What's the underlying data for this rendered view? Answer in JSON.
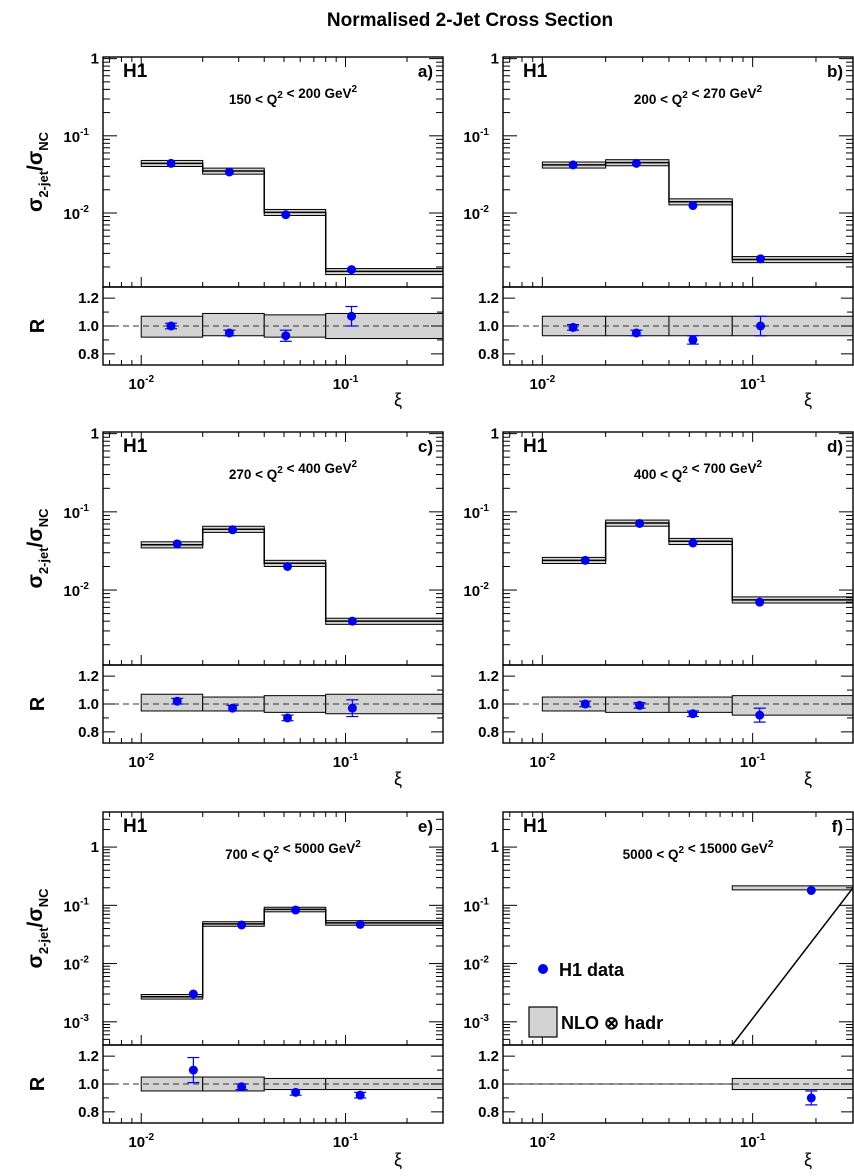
{
  "figure_title": "Normalised 2-Jet Cross Section",
  "experiment_label": "H1",
  "colors": {
    "data": "#0000ee",
    "band": "#d3d3d3",
    "line": "#000000"
  },
  "tick_text": {
    "base": "10",
    "ylog_exps": [
      "-3",
      "-2",
      "-1"
    ],
    "ylog_one": "1",
    "xlog_exps": [
      "-2",
      "-1"
    ],
    "ratio_ticks": [
      "0.8",
      "1.0",
      "1.2"
    ]
  },
  "legend": {
    "data_label": "H1 data",
    "band_label": "NLO ⊗ hadr"
  },
  "chart_data": [
    {
      "type": "scatter",
      "panel": "a)",
      "q2_label": "150 < Q² < 200 GeV²",
      "xlabel": "ξ",
      "ylabel": "σ2-jet/σNC",
      "ratio_ylabel": "R",
      "xscale": "log",
      "xlim": [
        0.0065,
        0.3
      ],
      "yscale": "log",
      "ylim": [
        0.0011,
        1.05
      ],
      "ratio_ylim": [
        0.72,
        1.28
      ],
      "bin_edges": [
        0.01,
        0.02,
        0.04,
        0.08,
        0.3
      ],
      "nlo": [
        0.044,
        0.035,
        0.0102,
        0.00175
      ],
      "nlo_band_rel": [
        0.09,
        0.09,
        0.09,
        0.09
      ],
      "data_x": [
        0.014,
        0.027,
        0.051,
        0.107
      ],
      "data_y": [
        0.044,
        0.034,
        0.0095,
        0.00185
      ],
      "ratio_band_low": [
        0.92,
        0.93,
        0.92,
        0.91
      ],
      "ratio_band_high": [
        1.07,
        1.09,
        1.08,
        1.09
      ],
      "ratio": [
        1.0,
        0.95,
        0.93,
        1.07
      ],
      "ratio_err": [
        0.02,
        0.02,
        0.04,
        0.07
      ]
    },
    {
      "type": "scatter",
      "panel": "b)",
      "q2_label": "200 < Q² < 270 GeV²",
      "xlabel": "ξ",
      "ylabel": "",
      "ratio_ylabel": "",
      "xscale": "log",
      "xlim": [
        0.0065,
        0.3
      ],
      "yscale": "log",
      "ylim": [
        0.0011,
        1.05
      ],
      "ratio_ylim": [
        0.72,
        1.28
      ],
      "bin_edges": [
        0.01,
        0.02,
        0.04,
        0.08,
        0.3
      ],
      "nlo": [
        0.042,
        0.045,
        0.014,
        0.0025
      ],
      "nlo_band_rel": [
        0.09,
        0.09,
        0.09,
        0.09
      ],
      "data_x": [
        0.014,
        0.028,
        0.052,
        0.109
      ],
      "data_y": [
        0.042,
        0.044,
        0.0125,
        0.00255
      ],
      "ratio_band_low": [
        0.93,
        0.93,
        0.93,
        0.93
      ],
      "ratio_band_high": [
        1.07,
        1.07,
        1.07,
        1.07
      ],
      "ratio": [
        0.99,
        0.95,
        0.9,
        1.0
      ],
      "ratio_err": [
        0.02,
        0.02,
        0.03,
        0.07
      ]
    },
    {
      "type": "scatter",
      "panel": "c)",
      "q2_label": "270 < Q² < 400 GeV²",
      "xlabel": "ξ",
      "ylabel": "σ2-jet/σNC",
      "ratio_ylabel": "R",
      "xscale": "log",
      "xlim": [
        0.0065,
        0.3
      ],
      "yscale": "log",
      "ylim": [
        0.0011,
        1.05
      ],
      "ratio_ylim": [
        0.72,
        1.28
      ],
      "bin_edges": [
        0.01,
        0.02,
        0.04,
        0.08,
        0.3
      ],
      "nlo": [
        0.038,
        0.06,
        0.022,
        0.004
      ],
      "nlo_band_rel": [
        0.09,
        0.09,
        0.09,
        0.09
      ],
      "data_x": [
        0.015,
        0.028,
        0.052,
        0.108
      ],
      "data_y": [
        0.039,
        0.059,
        0.02,
        0.004
      ],
      "ratio_band_low": [
        0.95,
        0.95,
        0.94,
        0.93
      ],
      "ratio_band_high": [
        1.07,
        1.05,
        1.06,
        1.07
      ],
      "ratio": [
        1.02,
        0.97,
        0.9,
        0.97
      ],
      "ratio_err": [
        0.02,
        0.02,
        0.02,
        0.06
      ]
    },
    {
      "type": "scatter",
      "panel": "d)",
      "q2_label": "400 < Q² < 700 GeV²",
      "xlabel": "ξ",
      "ylabel": "",
      "ratio_ylabel": "",
      "xscale": "log",
      "xlim": [
        0.0065,
        0.3
      ],
      "yscale": "log",
      "ylim": [
        0.0011,
        1.05
      ],
      "ratio_ylim": [
        0.72,
        1.28
      ],
      "bin_edges": [
        0.01,
        0.02,
        0.04,
        0.08,
        0.3
      ],
      "nlo": [
        0.024,
        0.072,
        0.042,
        0.0075
      ],
      "nlo_band_rel": [
        0.09,
        0.09,
        0.09,
        0.09
      ],
      "data_x": [
        0.016,
        0.029,
        0.052,
        0.108
      ],
      "data_y": [
        0.024,
        0.071,
        0.04,
        0.007
      ],
      "ratio_band_low": [
        0.95,
        0.94,
        0.94,
        0.92
      ],
      "ratio_band_high": [
        1.05,
        1.05,
        1.05,
        1.06
      ],
      "ratio": [
        1.0,
        0.99,
        0.93,
        0.92
      ],
      "ratio_err": [
        0.02,
        0.02,
        0.02,
        0.05
      ]
    },
    {
      "type": "scatter",
      "panel": "e)",
      "q2_label": "700 < Q² < 5000 GeV²",
      "xlabel": "ξ",
      "ylabel": "σ2-jet/σNC",
      "ratio_ylabel": "R",
      "xscale": "log",
      "xlim": [
        0.0065,
        0.3
      ],
      "yscale": "log",
      "ylim": [
        0.0004,
        4
      ],
      "ratio_ylim": [
        0.72,
        1.28
      ],
      "bin_edges": [
        0.01,
        0.02,
        0.04,
        0.08,
        0.3
      ],
      "nlo": [
        0.0027,
        0.048,
        0.085,
        0.05
      ],
      "nlo_band_rel": [
        0.09,
        0.09,
        0.09,
        0.09
      ],
      "data_x": [
        0.018,
        0.031,
        0.057,
        0.118
      ],
      "data_y": [
        0.003,
        0.046,
        0.083,
        0.047
      ],
      "ratio_band_low": [
        0.95,
        0.95,
        0.96,
        0.96
      ],
      "ratio_band_high": [
        1.05,
        1.05,
        1.04,
        1.04
      ],
      "ratio": [
        1.1,
        0.98,
        0.94,
        0.92
      ],
      "ratio_err": [
        0.09,
        0.02,
        0.02,
        0.02
      ]
    },
    {
      "type": "scatter",
      "panel": "f)",
      "q2_label": "5000 < Q² < 15000 GeV²",
      "xlabel": "ξ",
      "ylabel": "",
      "ratio_ylabel": "",
      "xscale": "log",
      "xlim": [
        0.0065,
        0.3
      ],
      "yscale": "log",
      "ylim": [
        0.0004,
        4
      ],
      "ratio_ylim": [
        0.72,
        1.28
      ],
      "bin_edges": [
        0.08,
        0.3
      ],
      "nlo": [
        0.2
      ],
      "nlo_band_rel": [
        0.08
      ],
      "data_x": [
        0.19
      ],
      "data_y": [
        0.18
      ],
      "ratio_band_low": [
        0.96
      ],
      "ratio_band_high": [
        1.04
      ],
      "ratio": [
        0.9
      ],
      "ratio_err": [
        0.05
      ],
      "has_legend": true
    }
  ]
}
